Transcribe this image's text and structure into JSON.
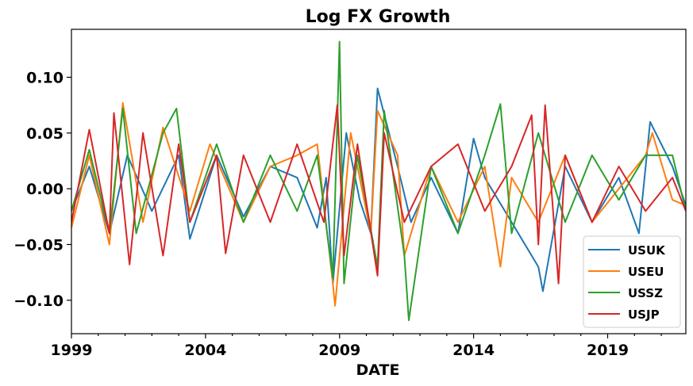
{
  "chart_data": {
    "type": "line",
    "title": "Log FX Growth",
    "xlabel": "DATE",
    "ylabel": "",
    "xlim": [
      "1999-01",
      "2021-12"
    ],
    "ylim": [
      -0.13,
      0.143
    ],
    "x_ticks": [
      "1999",
      "2004",
      "2009",
      "2014",
      "2019"
    ],
    "y_ticks": [
      "0.10",
      "0.05",
      "0.00",
      "−0.05",
      "−0.10"
    ],
    "y_tick_values": [
      0.1,
      0.05,
      0.0,
      -0.05,
      -0.1
    ],
    "legend_position": "lower-right",
    "grid": false,
    "series": [
      {
        "name": "USUK",
        "color": "#1f77b4",
        "points": [
          [
            "1999-01",
            -0.02
          ],
          [
            "1999-09",
            0.02
          ],
          [
            "2000-06",
            -0.04
          ],
          [
            "2001-02",
            0.03
          ],
          [
            "2002-01",
            -0.02
          ],
          [
            "2003-01",
            0.03
          ],
          [
            "2003-06",
            -0.045
          ],
          [
            "2004-06",
            0.03
          ],
          [
            "2005-06",
            -0.025
          ],
          [
            "2006-06",
            0.02
          ],
          [
            "2007-06",
            0.01
          ],
          [
            "2008-03",
            -0.035
          ],
          [
            "2008-07",
            0.01
          ],
          [
            "2008-10",
            -0.085
          ],
          [
            "2009-04",
            0.05
          ],
          [
            "2009-10",
            -0.01
          ],
          [
            "2010-03",
            -0.04
          ],
          [
            "2010-06",
            0.09
          ],
          [
            "2011-03",
            0.02
          ],
          [
            "2011-09",
            -0.03
          ],
          [
            "2012-06",
            0.01
          ],
          [
            "2013-06",
            -0.04
          ],
          [
            "2014-01",
            0.045
          ],
          [
            "2014-06",
            0.01
          ],
          [
            "2015-06",
            -0.03
          ],
          [
            "2016-06",
            -0.07
          ],
          [
            "2016-08",
            -0.092
          ],
          [
            "2017-06",
            0.02
          ],
          [
            "2018-06",
            -0.03
          ],
          [
            "2019-06",
            0.01
          ],
          [
            "2020-03",
            -0.04
          ],
          [
            "2020-08",
            0.06
          ],
          [
            "2021-06",
            0.02
          ],
          [
            "2021-12",
            -0.015
          ]
        ]
      },
      {
        "name": "USEU",
        "color": "#ff7f0e",
        "points": [
          [
            "1999-01",
            -0.035
          ],
          [
            "1999-09",
            0.03
          ],
          [
            "2000-06",
            -0.05
          ],
          [
            "2000-12",
            0.077
          ],
          [
            "2001-09",
            -0.03
          ],
          [
            "2002-06",
            0.055
          ],
          [
            "2003-06",
            -0.02
          ],
          [
            "2004-03",
            0.04
          ],
          [
            "2005-06",
            -0.03
          ],
          [
            "2006-06",
            0.02
          ],
          [
            "2007-06",
            0.03
          ],
          [
            "2008-03",
            0.04
          ],
          [
            "2008-10",
            -0.085
          ],
          [
            "2008-11",
            -0.105
          ],
          [
            "2009-06",
            0.05
          ],
          [
            "2010-03",
            -0.04
          ],
          [
            "2010-06",
            0.07
          ],
          [
            "2011-03",
            0.03
          ],
          [
            "2011-06",
            -0.06
          ],
          [
            "2012-06",
            0.02
          ],
          [
            "2013-06",
            -0.03
          ],
          [
            "2014-06",
            0.02
          ],
          [
            "2015-01",
            -0.07
          ],
          [
            "2015-06",
            0.01
          ],
          [
            "2016-06",
            -0.03
          ],
          [
            "2017-06",
            0.03
          ],
          [
            "2018-06",
            -0.03
          ],
          [
            "2019-06",
            0.0
          ],
          [
            "2020-06",
            0.03
          ],
          [
            "2020-09",
            0.05
          ],
          [
            "2021-06",
            -0.01
          ],
          [
            "2021-12",
            -0.015
          ]
        ]
      },
      {
        "name": "USSZ",
        "color": "#2ca02c",
        "points": [
          [
            "1999-01",
            -0.02
          ],
          [
            "1999-09",
            0.035
          ],
          [
            "2000-06",
            -0.04
          ],
          [
            "2000-12",
            0.072
          ],
          [
            "2001-06",
            -0.04
          ],
          [
            "2002-06",
            0.05
          ],
          [
            "2002-12",
            0.072
          ],
          [
            "2003-06",
            -0.03
          ],
          [
            "2004-06",
            0.04
          ],
          [
            "2005-06",
            -0.03
          ],
          [
            "2006-06",
            0.03
          ],
          [
            "2007-06",
            -0.02
          ],
          [
            "2008-03",
            0.03
          ],
          [
            "2008-10",
            -0.08
          ],
          [
            "2009-01",
            0.132
          ],
          [
            "2009-03",
            -0.085
          ],
          [
            "2009-09",
            0.03
          ],
          [
            "2010-06",
            -0.07
          ],
          [
            "2010-09",
            0.07
          ],
          [
            "2011-06",
            -0.06
          ],
          [
            "2011-08",
            -0.118
          ],
          [
            "2012-06",
            0.02
          ],
          [
            "2013-06",
            -0.04
          ],
          [
            "2014-06",
            0.03
          ],
          [
            "2015-01",
            0.076
          ],
          [
            "2015-06",
            -0.04
          ],
          [
            "2016-06",
            0.05
          ],
          [
            "2017-06",
            -0.03
          ],
          [
            "2018-06",
            0.03
          ],
          [
            "2019-06",
            -0.01
          ],
          [
            "2020-06",
            0.03
          ],
          [
            "2021-06",
            0.03
          ],
          [
            "2021-12",
            -0.02
          ]
        ]
      },
      {
        "name": "USJP",
        "color": "#d62728",
        "points": [
          [
            "1999-01",
            -0.03
          ],
          [
            "1999-09",
            0.053
          ],
          [
            "2000-06",
            -0.04
          ],
          [
            "2000-08",
            0.068
          ],
          [
            "2001-03",
            -0.068
          ],
          [
            "2001-09",
            0.05
          ],
          [
            "2002-06",
            -0.06
          ],
          [
            "2003-01",
            0.04
          ],
          [
            "2003-06",
            -0.03
          ],
          [
            "2004-06",
            0.03
          ],
          [
            "2004-10",
            -0.058
          ],
          [
            "2005-06",
            0.03
          ],
          [
            "2006-06",
            -0.03
          ],
          [
            "2007-06",
            0.04
          ],
          [
            "2008-06",
            -0.03
          ],
          [
            "2008-12",
            0.075
          ],
          [
            "2009-03",
            -0.06
          ],
          [
            "2009-09",
            0.04
          ],
          [
            "2010-06",
            -0.078
          ],
          [
            "2010-09",
            0.05
          ],
          [
            "2011-06",
            -0.03
          ],
          [
            "2012-06",
            0.02
          ],
          [
            "2013-06",
            0.04
          ],
          [
            "2014-06",
            -0.02
          ],
          [
            "2015-06",
            0.02
          ],
          [
            "2016-03",
            0.066
          ],
          [
            "2016-06",
            -0.05
          ],
          [
            "2016-09",
            0.075
          ],
          [
            "2017-03",
            -0.085
          ],
          [
            "2017-06",
            0.03
          ],
          [
            "2018-06",
            -0.03
          ],
          [
            "2019-06",
            0.02
          ],
          [
            "2020-06",
            -0.02
          ],
          [
            "2021-06",
            0.01
          ],
          [
            "2021-12",
            -0.02
          ]
        ]
      }
    ]
  }
}
